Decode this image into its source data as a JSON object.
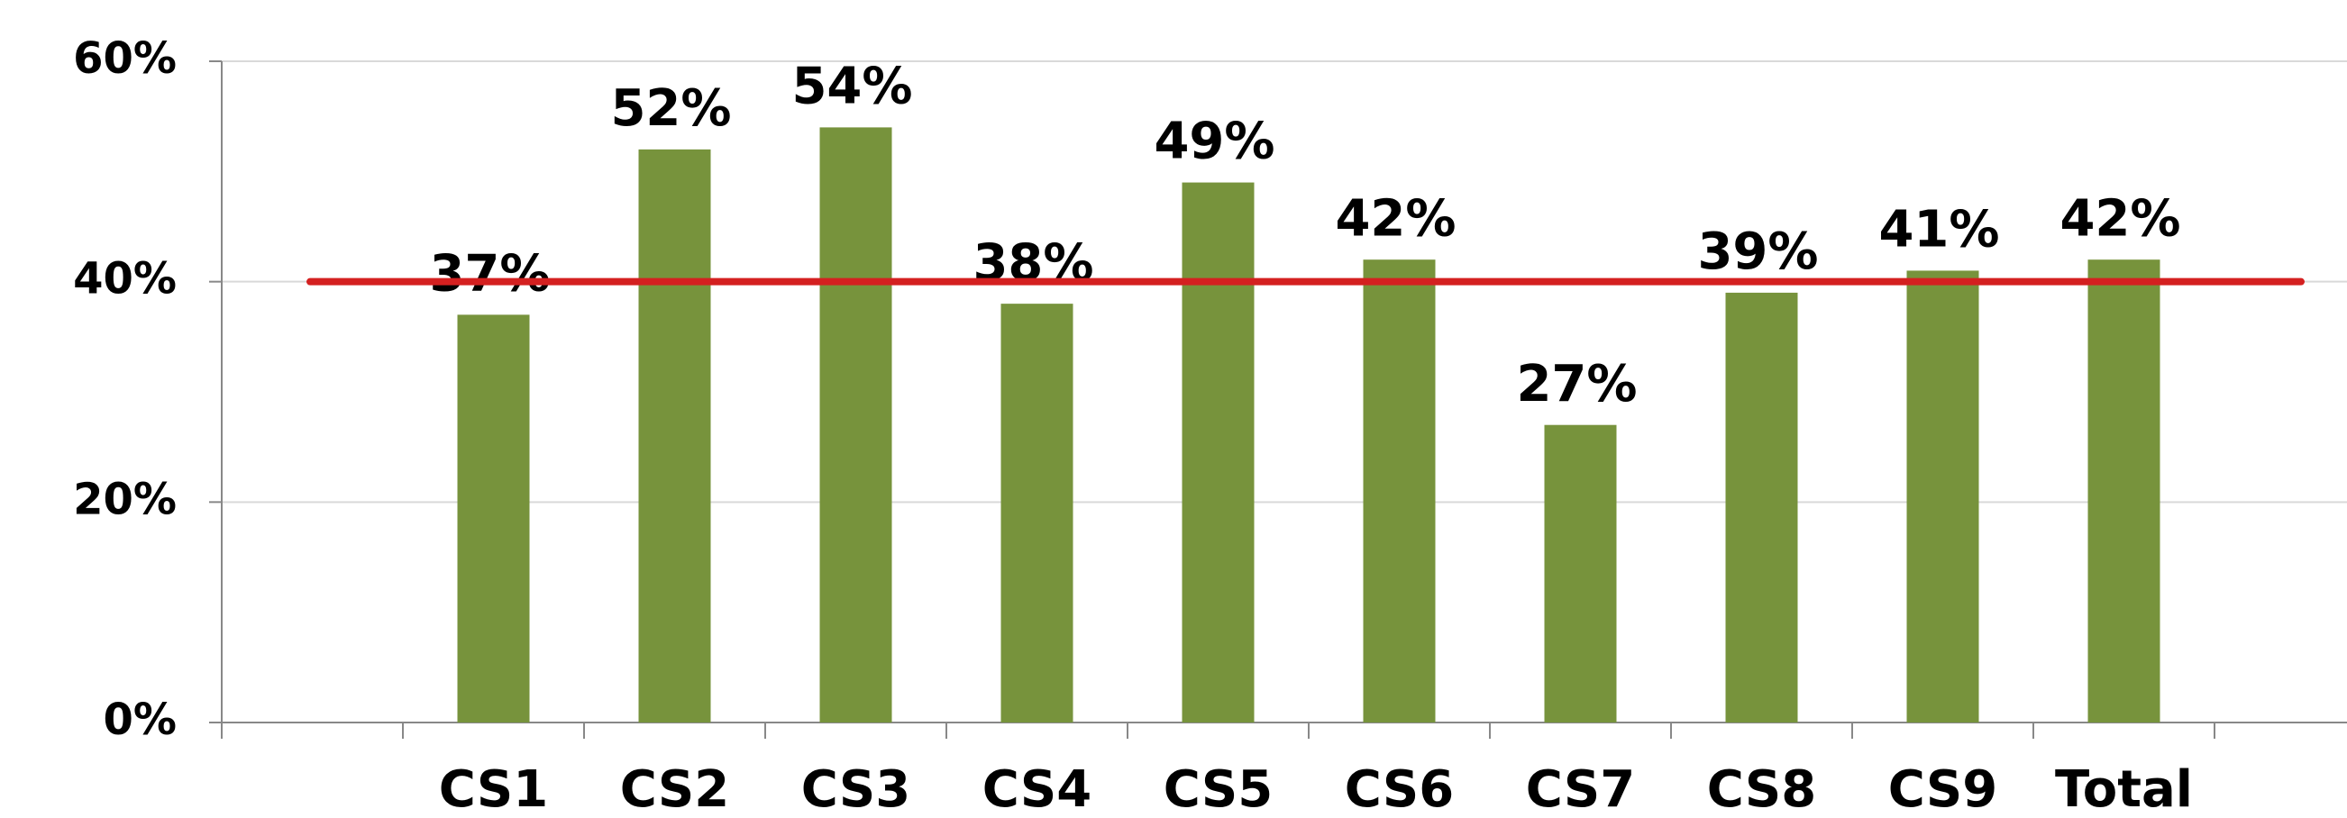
{
  "chart_data": {
    "type": "bar",
    "categories": [
      null,
      "CS1",
      "CS2",
      "CS3",
      "CS4",
      "CS5",
      "CS6",
      "CS7",
      "CS8",
      "CS9",
      "Total",
      null
    ],
    "values": [
      null,
      37,
      52,
      54,
      38,
      49,
      42,
      27,
      39,
      41,
      42,
      null
    ],
    "value_labels": [
      null,
      "37%",
      "52%",
      "54%",
      "38%",
      "49%",
      "42%",
      "27%",
      "39%",
      "41%",
      "42%",
      null
    ],
    "color": "#77933c",
    "ylim": [
      0,
      60
    ],
    "yticks": [
      {
        "value": 0,
        "label": "0%"
      },
      {
        "value": 20,
        "label": "20%"
      },
      {
        "value": 40,
        "label": "40%"
      },
      {
        "value": 60,
        "label": "60%"
      }
    ],
    "grid": true,
    "reference_line": 40,
    "reference_line_color": "#d42020"
  }
}
